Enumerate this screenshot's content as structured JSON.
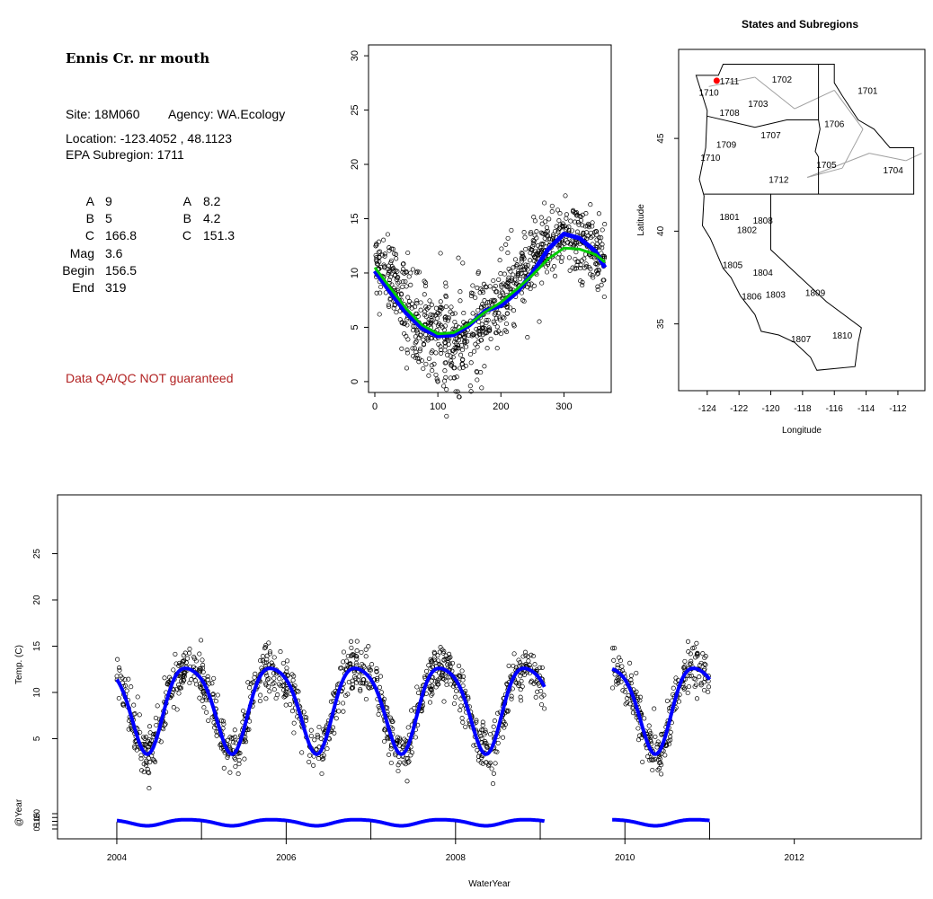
{
  "site": {
    "title": "Ennis Cr. nr mouth",
    "site_label": "Site: 18M060",
    "agency_label": "Agency: WA.Ecology",
    "location_label": "Location: -123.4052 , 48.1123",
    "subregion_label": "EPA Subregion: 1711",
    "qa_note": "Data QA/QC NOT guaranteed"
  },
  "params": {
    "left": [
      {
        "label": "A",
        "value": "9"
      },
      {
        "label": "B",
        "value": "5"
      },
      {
        "label": "C",
        "value": "166.8"
      },
      {
        "label": "Mag",
        "value": "3.6"
      },
      {
        "label": "Begin",
        "value": "156.5"
      },
      {
        "label": "End",
        "value": "319"
      }
    ],
    "right": [
      {
        "label": "A",
        "value": "8.2"
      },
      {
        "label": "B",
        "value": "4.2"
      },
      {
        "label": "C",
        "value": "151.3"
      }
    ]
  },
  "colors": {
    "fit_primary": "#0000ff",
    "fit_secondary": "#00cc00",
    "site_marker": "#ff0000",
    "qa_note": "#b22222",
    "boundary": "#a0a0a0"
  },
  "chart_data": [
    {
      "type": "scatter",
      "id": "seasonal",
      "title": "",
      "xlabel": "",
      "ylabel": "",
      "xlim": [
        -10,
        375
      ],
      "ylim": [
        -1,
        31
      ],
      "x_ticks": [
        0,
        100,
        200,
        300
      ],
      "y_ticks": [
        0,
        5,
        10,
        15,
        20,
        25,
        30
      ],
      "points_model": {
        "mean": 8.7,
        "amplitude": 4.6,
        "peak_day": 306,
        "noise": 1.6,
        "n": 900
      },
      "series": [
        {
          "color": "#0000ff",
          "x": [
            0,
            25,
            50,
            75,
            100,
            125,
            150,
            175,
            200,
            225,
            250,
            275,
            300,
            325,
            350,
            365
          ],
          "y": [
            10.2,
            8.2,
            6.3,
            4.9,
            4.2,
            4.3,
            5.2,
            6.5,
            7.0,
            8.2,
            10.0,
            12.2,
            13.6,
            13.2,
            12.0,
            10.5
          ]
        },
        {
          "color": "#00cc00",
          "x": [
            0,
            25,
            50,
            75,
            100,
            125,
            150,
            175,
            200,
            225,
            250,
            275,
            300,
            325,
            350,
            365
          ],
          "y": [
            10.5,
            8.6,
            6.7,
            5.2,
            4.4,
            4.5,
            5.3,
            6.4,
            7.3,
            8.5,
            9.8,
            11.3,
            12.3,
            12.2,
            11.7,
            11.0
          ]
        }
      ]
    },
    {
      "type": "line",
      "id": "map",
      "title": "States and Subregions",
      "xlabel": "Longitude",
      "ylabel": "Latitude",
      "xlim": [
        -125.8,
        -110.3
      ],
      "ylim": [
        31.4,
        49.8
      ],
      "x_ticks": [
        -124,
        -122,
        -120,
        -118,
        -116,
        -114,
        -112
      ],
      "y_ticks": [
        35,
        40,
        45
      ],
      "site": {
        "lon": -123.4052,
        "lat": 48.1123
      },
      "subregion_labels": [
        {
          "text": "1711",
          "lon": -122.6,
          "lat": 48.1
        },
        {
          "text": "1702",
          "lon": -119.3,
          "lat": 48.2
        },
        {
          "text": "1701",
          "lon": -113.9,
          "lat": 47.6
        },
        {
          "text": "1710",
          "lon": -123.9,
          "lat": 47.5
        },
        {
          "text": "1703",
          "lon": -120.8,
          "lat": 46.9
        },
        {
          "text": "1708",
          "lon": -122.6,
          "lat": 46.4
        },
        {
          "text": "1706",
          "lon": -116.0,
          "lat": 45.8
        },
        {
          "text": "1707",
          "lon": -120.0,
          "lat": 45.2
        },
        {
          "text": "1709",
          "lon": -122.8,
          "lat": 44.7
        },
        {
          "text": "1710",
          "lon": -123.8,
          "lat": 44.0
        },
        {
          "text": "1705",
          "lon": -116.5,
          "lat": 43.6
        },
        {
          "text": "1704",
          "lon": -112.3,
          "lat": 43.3
        },
        {
          "text": "1712",
          "lon": -119.5,
          "lat": 42.8
        },
        {
          "text": "1801",
          "lon": -122.6,
          "lat": 40.8
        },
        {
          "text": "1808",
          "lon": -120.5,
          "lat": 40.6
        },
        {
          "text": "1802",
          "lon": -121.5,
          "lat": 40.1
        },
        {
          "text": "1805",
          "lon": -122.4,
          "lat": 38.2
        },
        {
          "text": "1804",
          "lon": -120.5,
          "lat": 37.8
        },
        {
          "text": "1806",
          "lon": -121.2,
          "lat": 36.5
        },
        {
          "text": "1803",
          "lon": -119.7,
          "lat": 36.6
        },
        {
          "text": "1809",
          "lon": -117.2,
          "lat": 36.7
        },
        {
          "text": "1807",
          "lon": -118.1,
          "lat": 34.2
        },
        {
          "text": "1810",
          "lon": -115.5,
          "lat": 34.4
        }
      ],
      "outline": [
        [
          -124.7,
          48.4
        ],
        [
          -124.0,
          46.5
        ],
        [
          -124.1,
          44.5
        ],
        [
          -124.5,
          42.8
        ],
        [
          -124.2,
          41.9
        ],
        [
          -124.3,
          40.3
        ],
        [
          -123.8,
          39.6
        ],
        [
          -123.0,
          38.0
        ],
        [
          -122.5,
          37.5
        ],
        [
          -121.9,
          36.5
        ],
        [
          -121.0,
          35.5
        ],
        [
          -120.6,
          34.6
        ],
        [
          -119.5,
          34.4
        ],
        [
          -118.5,
          34.0
        ],
        [
          -117.5,
          33.2
        ],
        [
          -117.1,
          32.5
        ],
        [
          -114.7,
          32.7
        ],
        [
          -114.5,
          34.0
        ],
        [
          -114.3,
          34.8
        ],
        [
          -116.5,
          36.2
        ],
        [
          -120.0,
          39.0
        ],
        [
          -120.0,
          42.0
        ],
        [
          -111.0,
          42.0
        ],
        [
          -111.0,
          43.5
        ],
        [
          -111.0,
          44.5
        ],
        [
          -112.5,
          44.5
        ],
        [
          -113.5,
          45.5
        ],
        [
          -114.5,
          46.0
        ],
        [
          -115.5,
          47.3
        ],
        [
          -116.0,
          48.0
        ],
        [
          -116.0,
          49.0
        ],
        [
          -123.0,
          49.0
        ],
        [
          -123.3,
          48.4
        ],
        [
          -124.7,
          48.4
        ]
      ],
      "borders": [
        [
          [
            -117.0,
            49.0
          ],
          [
            -117.0,
            46.0
          ],
          [
            -116.9,
            45.5
          ],
          [
            -117.2,
            44.3
          ],
          [
            -117.0,
            44.0
          ],
          [
            -117.0,
            42.0
          ]
        ],
        [
          [
            -124.0,
            46.2
          ],
          [
            -121.0,
            45.6
          ],
          [
            -119.0,
            46.0
          ],
          [
            -117.0,
            46.0
          ]
        ],
        [
          [
            -124.2,
            42.0
          ],
          [
            -120.0,
            42.0
          ]
        ]
      ]
    },
    {
      "type": "line",
      "id": "timeseries",
      "title": "",
      "xlabel": "WaterYear",
      "ylabel": "Temp. (C)",
      "ylabel_lower": "@Year",
      "xlim": [
        2003.3,
        2013.5
      ],
      "ylim": [
        0,
        30
      ],
      "x_ticks": [
        2004,
        2006,
        2008,
        2010,
        2012
      ],
      "y_ticks": [
        5,
        10,
        15,
        20,
        25
      ],
      "y_ticks_lower": [
        0,
        5,
        10,
        15,
        20
      ],
      "segments": [
        {
          "start": 2004.0,
          "end": 2009.05
        },
        {
          "start": 2009.85,
          "end": 2011.0
        }
      ],
      "fit": {
        "mean": 8.7,
        "amplitude": 4.6,
        "peak_phase": 0.85
      },
      "lower_fit": {
        "mean": 8.7,
        "amplitude": 4.0,
        "peak_phase": 0.85
      },
      "year_ticks": [
        2004,
        2005,
        2006,
        2007,
        2008,
        2009,
        2010,
        2011
      ]
    }
  ]
}
